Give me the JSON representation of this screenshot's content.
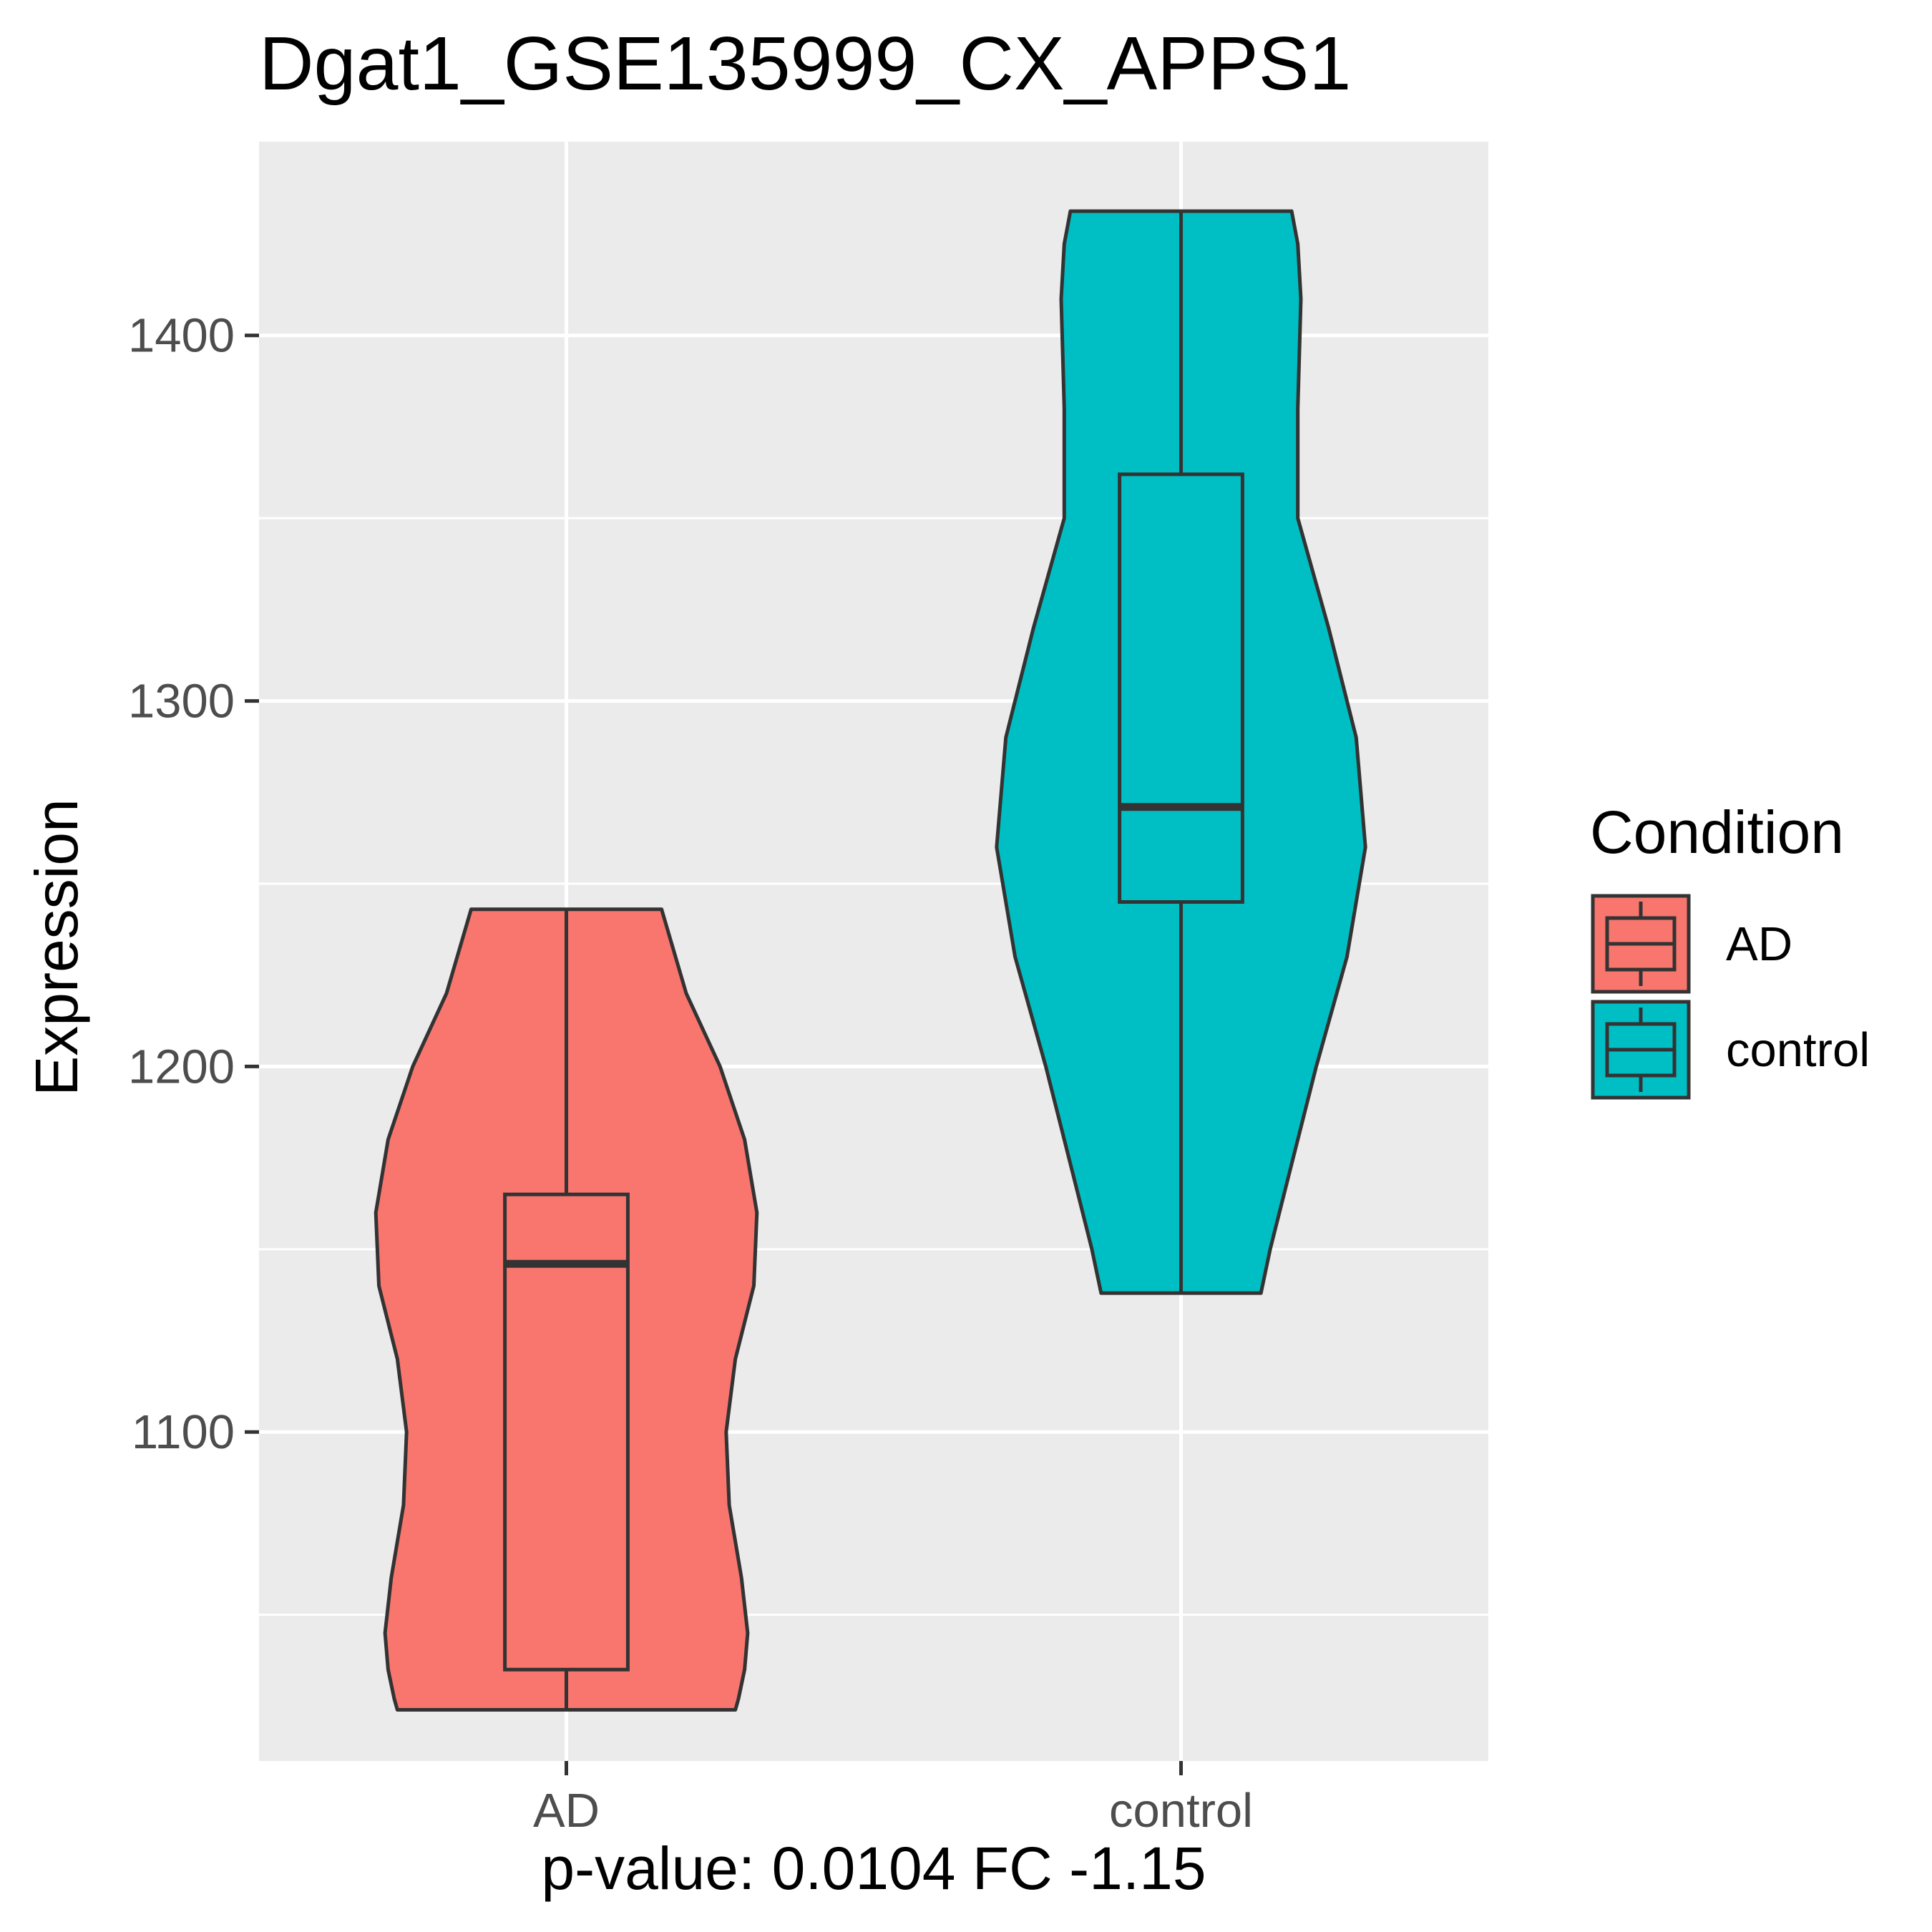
{
  "chart_data": {
    "type": "violin",
    "title": "Dgat1_GSE135999_CX_APPS1",
    "xlabel": "p-value: 0.0104 FC -1.15",
    "ylabel": "Expression",
    "ylim": [
      1010,
      1453
    ],
    "y_ticks": [
      1100,
      1200,
      1300,
      1400
    ],
    "y_tick_labels": [
      "1100",
      "1200",
      "1300",
      "1400"
    ],
    "y_minor_gridlines": [
      1050,
      1150,
      1250,
      1350
    ],
    "categories": [
      "AD",
      "control"
    ],
    "grid": true,
    "legend": {
      "title": "Condition",
      "placement": "right",
      "entries": [
        "AD",
        "control"
      ]
    },
    "series": [
      {
        "name": "AD",
        "color": "#F8766D",
        "boxplot": {
          "min": 1024,
          "q1": 1035,
          "median": 1146,
          "q3": 1165,
          "max": 1243
        },
        "density_profile": [
          [
            1024,
            0.55
          ],
          [
            1027,
            0.56
          ],
          [
            1035,
            0.58
          ],
          [
            1045,
            0.59
          ],
          [
            1060,
            0.57
          ],
          [
            1080,
            0.53
          ],
          [
            1100,
            0.52
          ],
          [
            1120,
            0.55
          ],
          [
            1140,
            0.61
          ],
          [
            1160,
            0.62
          ],
          [
            1180,
            0.58
          ],
          [
            1200,
            0.5
          ],
          [
            1220,
            0.39
          ],
          [
            1243,
            0.31
          ]
        ]
      },
      {
        "name": "control",
        "color": "#00BFC4",
        "boxplot": {
          "min": 1138,
          "q1": 1245,
          "median": 1271,
          "q3": 1362,
          "max": 1434
        },
        "density_profile": [
          [
            1138,
            0.26
          ],
          [
            1150,
            0.29
          ],
          [
            1170,
            0.35
          ],
          [
            1200,
            0.44
          ],
          [
            1230,
            0.54
          ],
          [
            1260,
            0.6
          ],
          [
            1290,
            0.57
          ],
          [
            1320,
            0.48
          ],
          [
            1350,
            0.38
          ],
          [
            1380,
            0.38
          ],
          [
            1410,
            0.39
          ],
          [
            1425,
            0.38
          ],
          [
            1434,
            0.36
          ]
        ]
      }
    ]
  }
}
